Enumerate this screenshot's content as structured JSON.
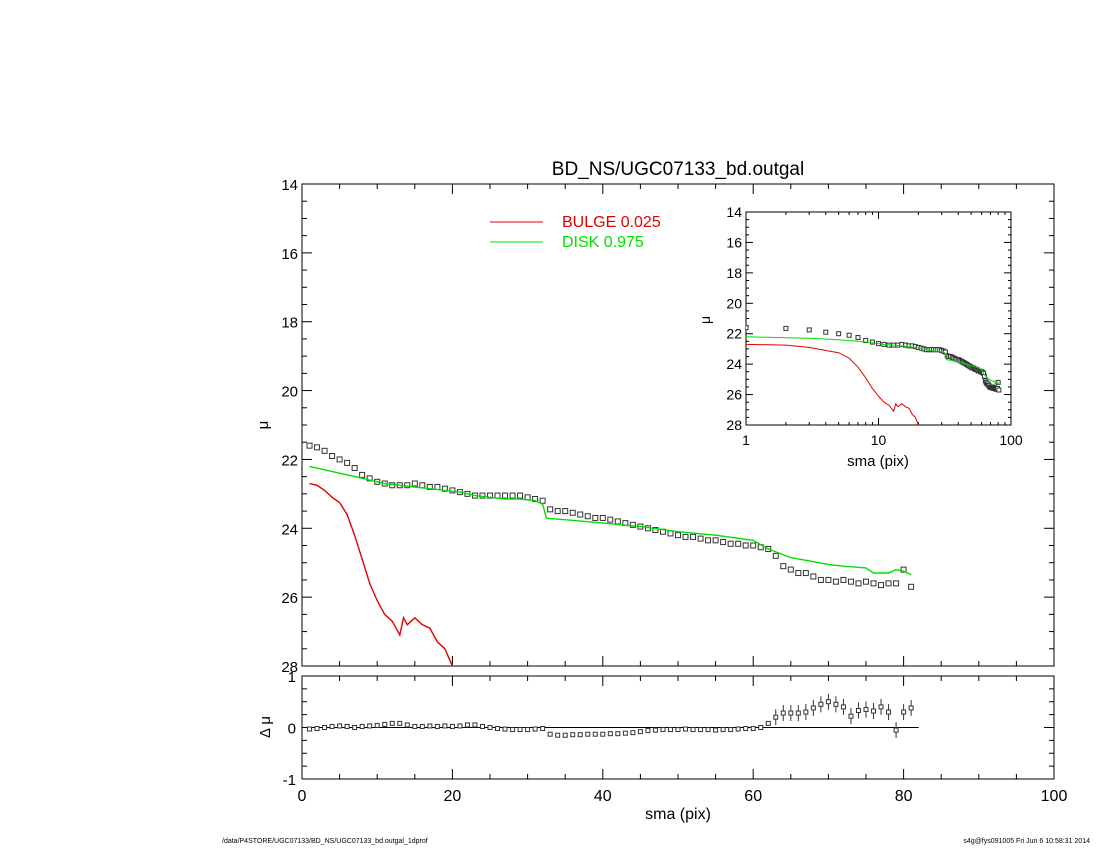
{
  "chart_data": {
    "title": "BD_NS/UGC07133_bd.outgal",
    "main": {
      "type": "line",
      "xlabel": "sma (pix)",
      "ylabel": "μ",
      "xlim": [
        0,
        100
      ],
      "ylim": [
        28,
        14
      ],
      "yticks": [
        "14",
        "16",
        "18",
        "20",
        "22",
        "24",
        "26",
        "28"
      ],
      "legend": [
        {
          "name": "BULGE",
          "value": "0.025",
          "color": "#e00000"
        },
        {
          "name": "DISK",
          "value": "0.975",
          "color": "#00e000"
        }
      ],
      "series": [
        {
          "name": "data",
          "style": "squares",
          "x": [
            1,
            2,
            3,
            4,
            5,
            6,
            7,
            8,
            9,
            10,
            11,
            12,
            13,
            14,
            15,
            16,
            17,
            18,
            19,
            20,
            21,
            22,
            23,
            24,
            25,
            26,
            27,
            28,
            29,
            30,
            31,
            32,
            33,
            34,
            35,
            36,
            37,
            38,
            39,
            40,
            41,
            42,
            43,
            44,
            45,
            46,
            47,
            48,
            49,
            50,
            51,
            52,
            53,
            54,
            55,
            56,
            57,
            58,
            59,
            60,
            61,
            62,
            63,
            64,
            65,
            66,
            67,
            68,
            69,
            70,
            71,
            72,
            73,
            74,
            75,
            76,
            77,
            78,
            79,
            80,
            81
          ],
          "y": [
            21.6,
            21.65,
            21.75,
            21.9,
            22.0,
            22.1,
            22.25,
            22.45,
            22.55,
            22.65,
            22.7,
            22.75,
            22.75,
            22.75,
            22.7,
            22.75,
            22.8,
            22.8,
            22.85,
            22.9,
            22.95,
            23.0,
            23.05,
            23.05,
            23.05,
            23.05,
            23.05,
            23.05,
            23.05,
            23.1,
            23.15,
            23.2,
            23.45,
            23.5,
            23.5,
            23.55,
            23.6,
            23.65,
            23.7,
            23.7,
            23.75,
            23.8,
            23.85,
            23.9,
            23.95,
            24.0,
            24.05,
            24.1,
            24.15,
            24.2,
            24.25,
            24.25,
            24.3,
            24.35,
            24.35,
            24.4,
            24.45,
            24.45,
            24.5,
            24.5,
            24.55,
            24.6,
            24.8,
            25.1,
            25.2,
            25.3,
            25.3,
            25.4,
            25.5,
            25.5,
            25.55,
            25.5,
            25.55,
            25.6,
            25.55,
            25.6,
            25.65,
            25.6,
            25.6,
            25.2,
            25.7
          ]
        },
        {
          "name": "BULGE",
          "style": "line",
          "color": "#e00000",
          "x": [
            1,
            2,
            3,
            4,
            5,
            6,
            7,
            8,
            9,
            10,
            11,
            12,
            13,
            13.5,
            14,
            15,
            16,
            17,
            18,
            19,
            20
          ],
          "y": [
            22.7,
            22.75,
            22.9,
            23.1,
            23.25,
            23.6,
            24.2,
            24.9,
            25.6,
            26.1,
            26.5,
            26.7,
            27.1,
            26.6,
            26.8,
            26.6,
            26.8,
            26.9,
            27.3,
            27.5,
            28.0
          ]
        },
        {
          "name": "DISK",
          "style": "line",
          "color": "#00e000",
          "x": [
            1,
            3,
            5,
            7,
            9,
            11,
            13,
            15,
            17,
            19,
            21,
            23,
            25,
            27,
            29,
            31,
            32,
            32.5,
            33,
            35,
            40,
            45,
            50,
            55,
            60,
            62,
            65,
            70,
            72,
            75,
            76,
            77,
            78,
            79,
            80,
            81
          ],
          "y": [
            22.2,
            22.3,
            22.4,
            22.5,
            22.6,
            22.7,
            22.75,
            22.8,
            22.85,
            22.9,
            22.95,
            23.05,
            23.1,
            23.15,
            23.15,
            23.2,
            23.3,
            23.7,
            23.72,
            23.75,
            23.85,
            23.95,
            24.1,
            24.2,
            24.35,
            24.6,
            24.85,
            25.05,
            25.1,
            25.15,
            25.3,
            25.3,
            25.3,
            25.2,
            25.25,
            25.35
          ]
        }
      ]
    },
    "inset": {
      "type": "line",
      "xlabel": "sma (pix)",
      "ylabel": "μ",
      "xscale": "log",
      "xlim": [
        1,
        100
      ],
      "ylim": [
        28,
        14
      ],
      "yticks": [
        "14",
        "16",
        "18",
        "20",
        "22",
        "24",
        "26",
        "28"
      ],
      "xticks": [
        "1",
        "10",
        "100"
      ]
    },
    "residual": {
      "type": "scatter",
      "ylabel": "Δ μ",
      "xlabel": "sma (pix)",
      "xlim": [
        0,
        100
      ],
      "ylim": [
        -1,
        1
      ],
      "yticks": [
        "1",
        "0",
        "-1"
      ],
      "xticks": [
        "0",
        "20",
        "40",
        "60",
        "80",
        "100"
      ],
      "x": [
        1,
        2,
        3,
        4,
        5,
        6,
        7,
        8,
        9,
        10,
        11,
        12,
        13,
        14,
        15,
        16,
        17,
        18,
        19,
        20,
        21,
        22,
        23,
        24,
        25,
        26,
        27,
        28,
        29,
        30,
        31,
        32,
        33,
        34,
        35,
        36,
        37,
        38,
        39,
        40,
        41,
        42,
        43,
        44,
        45,
        46,
        47,
        48,
        49,
        50,
        51,
        52,
        53,
        54,
        55,
        56,
        57,
        58,
        59,
        60,
        61,
        62,
        63,
        64,
        65,
        66,
        67,
        68,
        69,
        70,
        71,
        72,
        73,
        74,
        75,
        76,
        77,
        78,
        79,
        80,
        81
      ],
      "y": [
        -0.03,
        -0.02,
        0.0,
        0.02,
        0.03,
        0.02,
        0.0,
        0.02,
        0.03,
        0.04,
        0.06,
        0.08,
        0.08,
        0.05,
        0.02,
        0.02,
        0.03,
        0.02,
        0.03,
        0.02,
        0.03,
        0.05,
        0.05,
        0.02,
        0.0,
        -0.02,
        -0.03,
        -0.04,
        -0.04,
        -0.04,
        -0.03,
        -0.02,
        -0.13,
        -0.15,
        -0.15,
        -0.14,
        -0.14,
        -0.13,
        -0.13,
        -0.13,
        -0.12,
        -0.12,
        -0.11,
        -0.1,
        -0.08,
        -0.06,
        -0.05,
        -0.04,
        -0.04,
        -0.04,
        -0.03,
        -0.04,
        -0.04,
        -0.04,
        -0.05,
        -0.04,
        -0.04,
        -0.03,
        -0.02,
        -0.02,
        0.0,
        0.08,
        0.2,
        0.28,
        0.28,
        0.28,
        0.3,
        0.38,
        0.45,
        0.5,
        0.45,
        0.4,
        0.22,
        0.33,
        0.35,
        0.32,
        0.4,
        0.3,
        -0.05,
        0.3,
        0.38
      ]
    }
  },
  "footer": {
    "left": "/data/P4STORE/UGC07133/BD_NS/UGC07133_bd.outgal_1dprof",
    "right": "s4g@fys091005  Fri Jun  6 10:58:31 2014"
  }
}
